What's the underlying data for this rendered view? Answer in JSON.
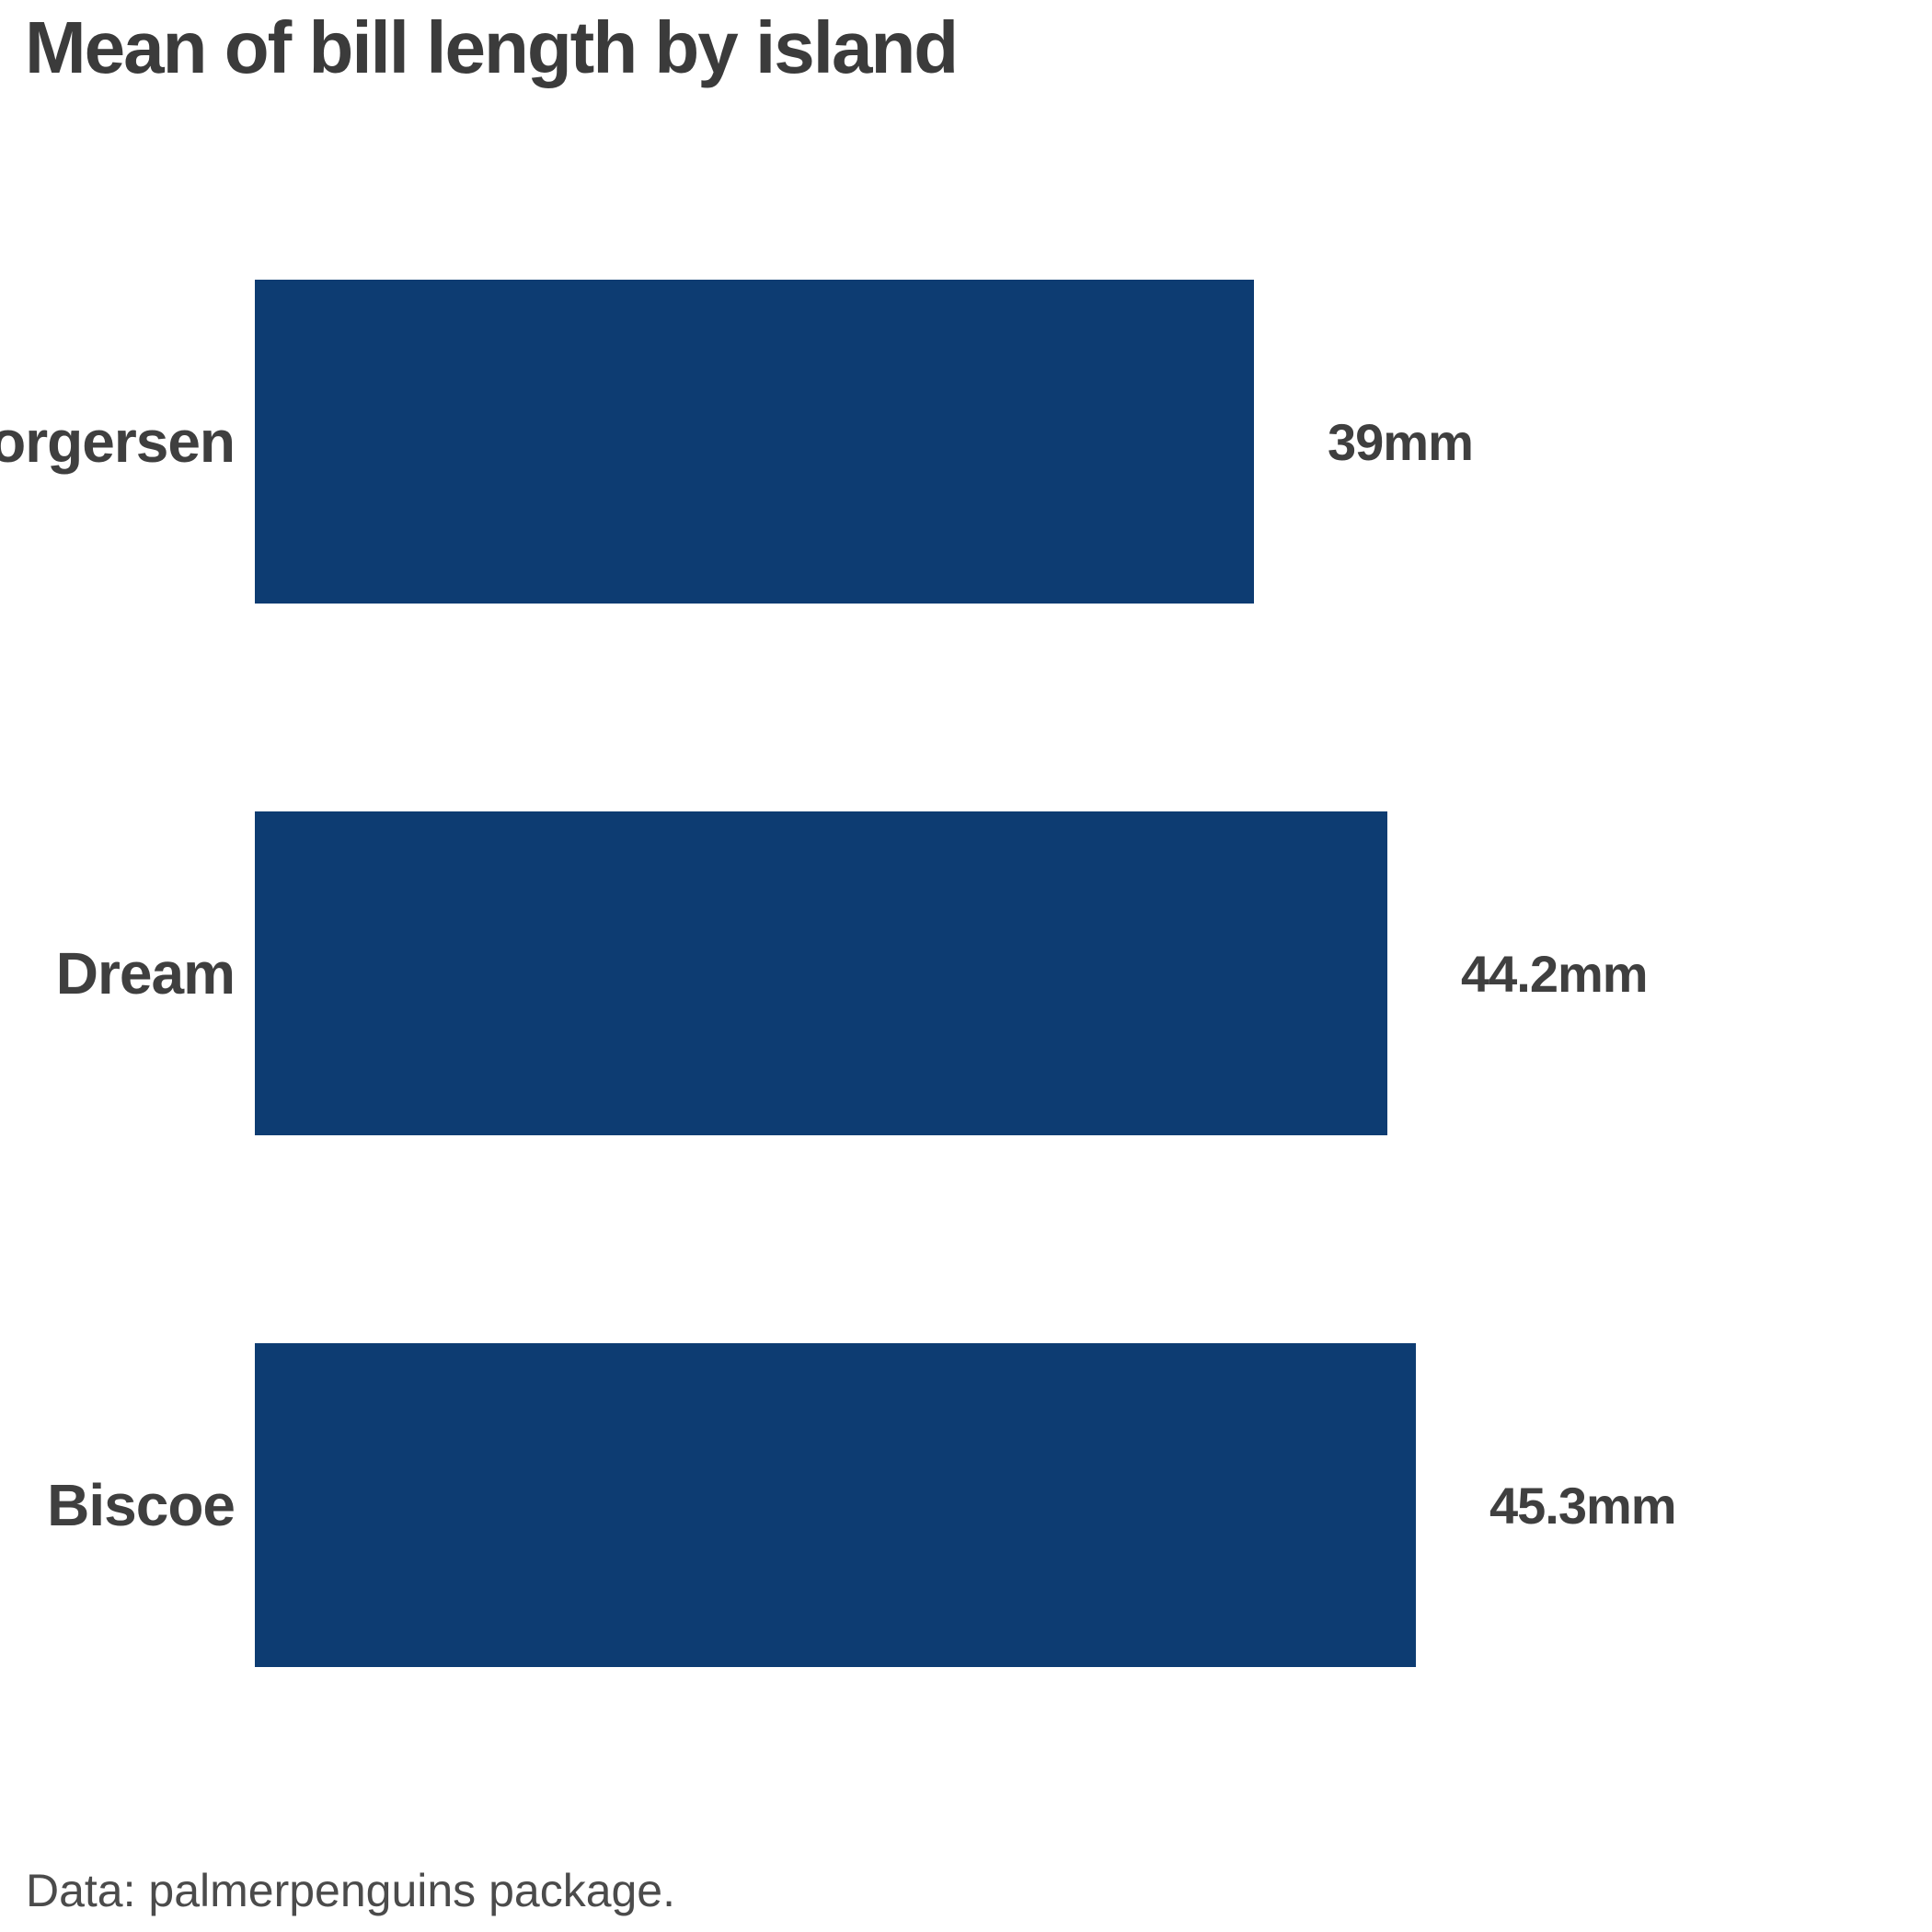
{
  "title": "Mean of bill length by island",
  "footer": "Data: palmerpenguins package.",
  "colors": {
    "bar": "#0d3c72",
    "title_text": "#3b3b3b",
    "label_text": "#3f3f3f",
    "footer_text": "#4b4b4b",
    "background": "#ffffff"
  },
  "chart_data": {
    "type": "bar",
    "orientation": "horizontal",
    "title": "Mean of bill length by island",
    "categories": [
      "Torgersen",
      "Dream",
      "Biscoe"
    ],
    "values": [
      39,
      44.2,
      45.3
    ],
    "value_labels": [
      "39mm",
      "44.2mm",
      "45.3mm"
    ],
    "unit": "mm",
    "xlabel": "",
    "ylabel": "",
    "xlim": [
      0,
      45.3
    ],
    "grid": false,
    "legend": false,
    "bar_color": "#0d3c72",
    "source_note": "Data: palmerpenguins package."
  }
}
